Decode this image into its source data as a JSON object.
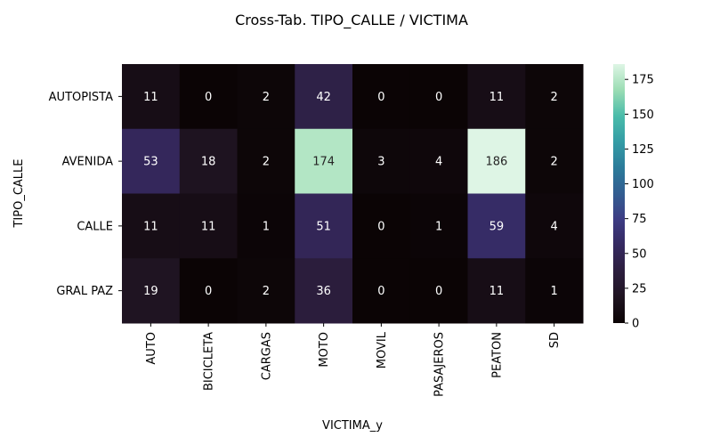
{
  "chart_data": {
    "type": "heatmap",
    "title": "Cross-Tab. TIPO_CALLE / VICTIMA",
    "xlabel": "VICTIMA_y",
    "ylabel": "TIPO_CALLE",
    "columns": [
      "AUTO",
      "BICICLETA",
      "CARGAS",
      "MOTO",
      "MOVIL",
      "PASAJEROS",
      "PEATON",
      "SD"
    ],
    "rows": [
      "AUTOPISTA",
      "AVENIDA",
      "CALLE",
      "GRAL PAZ"
    ],
    "values": [
      [
        11,
        0,
        2,
        42,
        0,
        0,
        11,
        2
      ],
      [
        53,
        18,
        2,
        174,
        3,
        4,
        186,
        2
      ],
      [
        11,
        11,
        1,
        51,
        0,
        1,
        59,
        4
      ],
      [
        19,
        0,
        2,
        36,
        0,
        0,
        11,
        1
      ]
    ],
    "colormap": "mako",
    "colorbar": {
      "range": [
        0,
        186
      ],
      "ticks": [
        0,
        25,
        50,
        75,
        100,
        125,
        150,
        175
      ]
    }
  }
}
